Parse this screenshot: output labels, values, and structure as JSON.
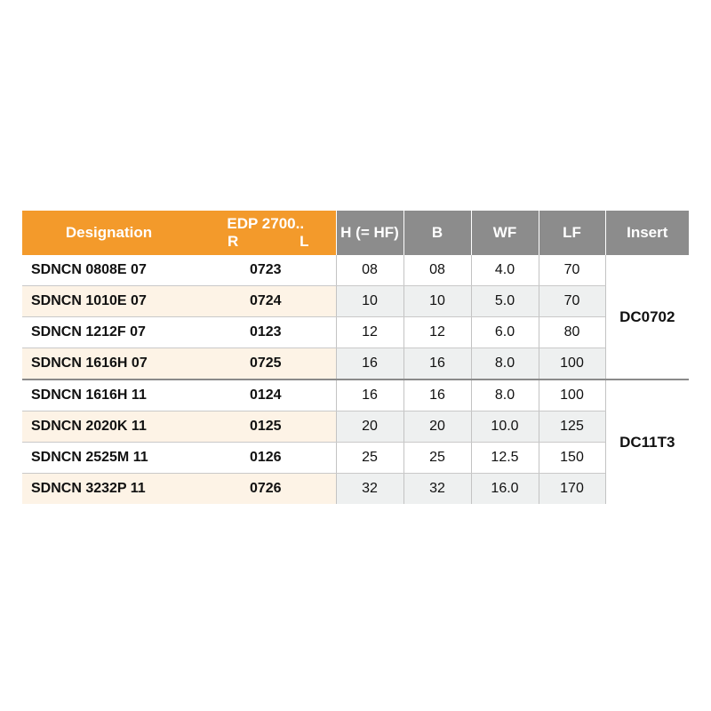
{
  "header": {
    "designation": "Designation",
    "edp": "EDP 2700..",
    "edp_r": "R",
    "edp_l": "L",
    "h": "H (= HF)",
    "b": "B",
    "wf": "WF",
    "lf": "LF",
    "insert": "Insert"
  },
  "colors": {
    "header_orange": "#f39a2b",
    "header_gray": "#8c8c8c",
    "row_cream": "#fdf3e6",
    "row_gray": "#eef0f0"
  },
  "rows": [
    {
      "designation": "SDNCN 0808E 07",
      "edp": "0723",
      "h": "08",
      "b": "08",
      "wf": "4.0",
      "lf": "70"
    },
    {
      "designation": "SDNCN 1010E 07",
      "edp": "0724",
      "h": "10",
      "b": "10",
      "wf": "5.0",
      "lf": "70"
    },
    {
      "designation": "SDNCN 1212F 07",
      "edp": "0123",
      "h": "12",
      "b": "12",
      "wf": "6.0",
      "lf": "80"
    },
    {
      "designation": "SDNCN 1616H 07",
      "edp": "0725",
      "h": "16",
      "b": "16",
      "wf": "8.0",
      "lf": "100"
    },
    {
      "designation": "SDNCN 1616H 11",
      "edp": "0124",
      "h": "16",
      "b": "16",
      "wf": "8.0",
      "lf": "100"
    },
    {
      "designation": "SDNCN 2020K 11",
      "edp": "0125",
      "h": "20",
      "b": "20",
      "wf": "10.0",
      "lf": "125"
    },
    {
      "designation": "SDNCN 2525M 11",
      "edp": "0126",
      "h": "25",
      "b": "25",
      "wf": "12.5",
      "lf": "150"
    },
    {
      "designation": "SDNCN 3232P 11",
      "edp": "0726",
      "h": "32",
      "b": "32",
      "wf": "16.0",
      "lf": "170"
    }
  ],
  "inserts": [
    "DC0702",
    "DC11T3"
  ]
}
